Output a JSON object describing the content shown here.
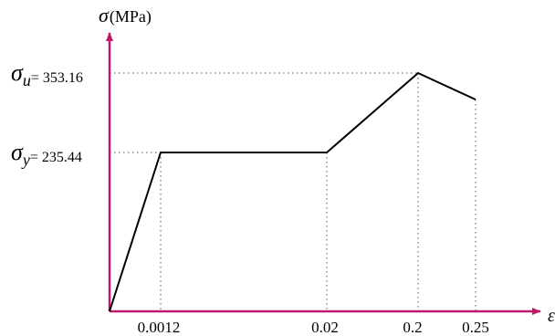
{
  "chart_data": {
    "type": "line",
    "ylabel": {
      "symbol": "σ",
      "unit": "(MPa)"
    },
    "xlabel": "ε",
    "x_ticks": [
      "0.0012",
      "0.02",
      "0.2",
      "0.25"
    ],
    "y_marks": [
      {
        "symbol": "σ",
        "subscript": "y",
        "text": "= 235.44",
        "value": 235.44
      },
      {
        "symbol": "σ",
        "subscript": "u",
        "text": "= 353.16",
        "value": 353.16
      }
    ],
    "series": [
      {
        "points": [
          {
            "x": "0",
            "y": 0
          },
          {
            "x": "0.0012",
            "y": 235.44
          },
          {
            "x": "0.02",
            "y": 235.44
          },
          {
            "x": "0.2",
            "y": 353.16
          },
          {
            "x": "0.25",
            "y": 313.9
          }
        ]
      }
    ],
    "x_scale": "non-uniform (not to scale)",
    "grid": false,
    "guide_lines": "dotted",
    "colors": {
      "axes": "#c2186b",
      "curve": "#000000",
      "guides": "#555555"
    }
  }
}
